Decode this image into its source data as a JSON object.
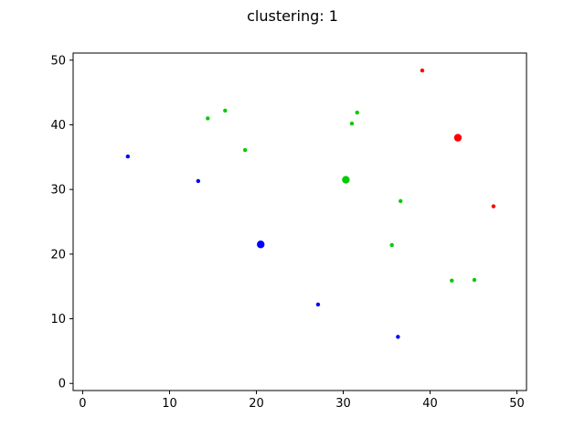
{
  "chart_data": {
    "type": "scatter",
    "title": "clustering: 1",
    "xlabel": "",
    "ylabel": "",
    "xlim": [
      -1.1,
      51.1
    ],
    "ylim": [
      -1.1,
      51.1
    ],
    "xticks": [
      0,
      10,
      20,
      30,
      40,
      50
    ],
    "yticks": [
      0,
      10,
      20,
      30,
      40,
      50
    ],
    "grid": false,
    "series": [
      {
        "color": "#0000ff",
        "center": {
          "x": 20.5,
          "y": 21.5
        },
        "points": [
          {
            "x": 5.2,
            "y": 35.1
          },
          {
            "x": 13.3,
            "y": 31.3
          },
          {
            "x": 27.1,
            "y": 12.2
          },
          {
            "x": 36.3,
            "y": 7.2
          }
        ]
      },
      {
        "color": "#00cc00",
        "center": {
          "x": 30.3,
          "y": 31.5
        },
        "points": [
          {
            "x": 14.4,
            "y": 41.0
          },
          {
            "x": 16.4,
            "y": 42.2
          },
          {
            "x": 18.7,
            "y": 36.1
          },
          {
            "x": 31.0,
            "y": 40.2
          },
          {
            "x": 31.6,
            "y": 41.9
          },
          {
            "x": 36.6,
            "y": 28.2
          },
          {
            "x": 35.6,
            "y": 21.4
          },
          {
            "x": 42.5,
            "y": 15.9
          },
          {
            "x": 45.1,
            "y": 16.0
          }
        ]
      },
      {
        "color": "#ff0000",
        "center": {
          "x": 43.2,
          "y": 38.0
        },
        "points": [
          {
            "x": 39.1,
            "y": 48.4
          },
          {
            "x": 47.3,
            "y": 27.4
          }
        ]
      }
    ]
  }
}
